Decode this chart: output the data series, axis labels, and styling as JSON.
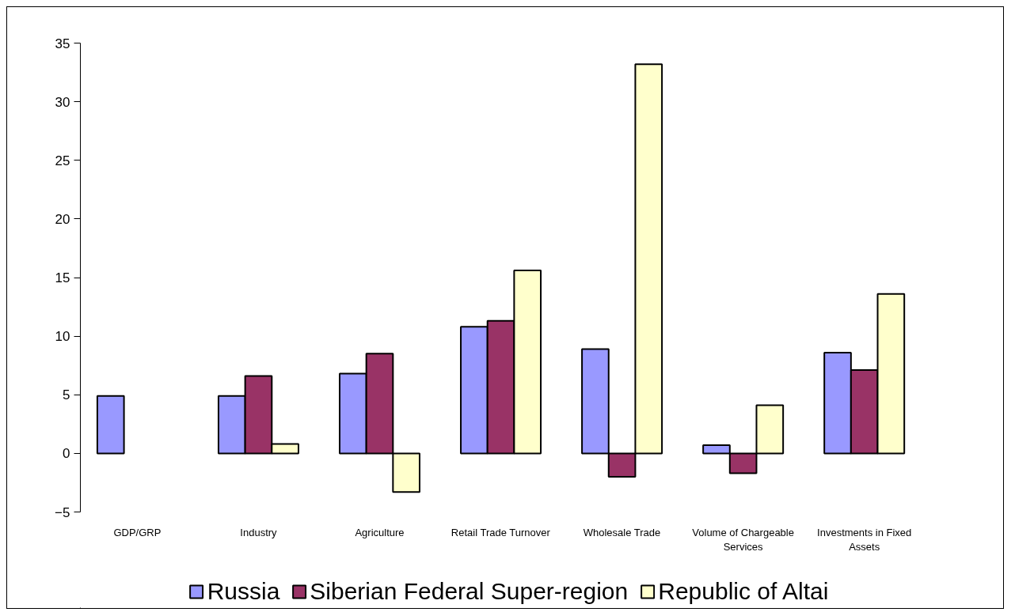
{
  "chart_data": {
    "type": "bar",
    "categories": [
      "GDP/GRP",
      "Industry",
      "Agriculture",
      "Retail Trade Turnover",
      "Wholesale Trade",
      "Volume of Chargeable Services",
      "Investments in Fixed Assets"
    ],
    "series": [
      {
        "name": "Russia",
        "color": "#9999ff",
        "values": [
          4.9,
          4.9,
          6.8,
          10.8,
          8.9,
          0.7,
          8.6
        ]
      },
      {
        "name": "Siberian Federal Super-region",
        "color": "#993366",
        "values": [
          null,
          6.6,
          8.5,
          11.3,
          -2.0,
          -1.7,
          7.1
        ]
      },
      {
        "name": "Republic of Altai",
        "color": "#ffffcc",
        "values": [
          null,
          0.8,
          -3.3,
          15.6,
          33.2,
          4.1,
          13.6
        ]
      }
    ],
    "ylim": [
      -5,
      35
    ],
    "yticks": [
      -5,
      0,
      5,
      10,
      15,
      20,
      25,
      30,
      35
    ],
    "grid": false,
    "legend": "bottom"
  }
}
